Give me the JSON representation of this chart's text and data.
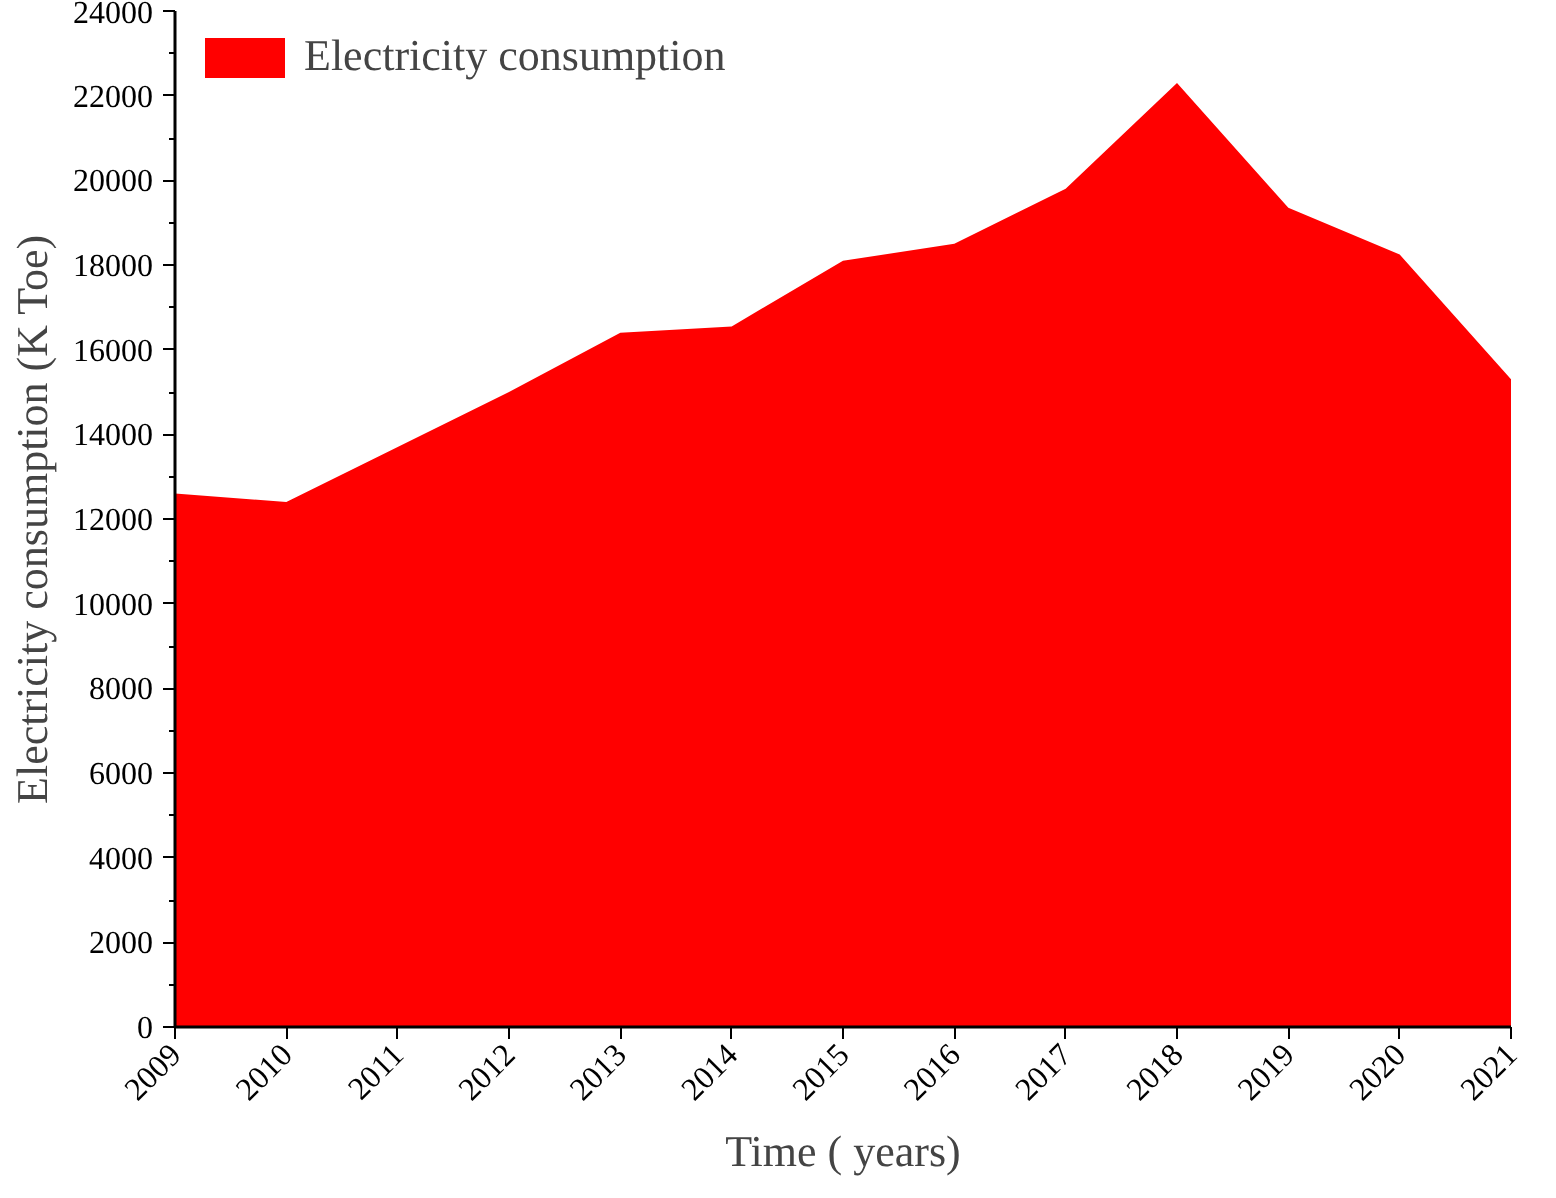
{
  "chart_data": {
    "type": "area",
    "xlabel": "Time ( years)",
    "ylabel": "Electricity consumption (K Toe)",
    "x": [
      2009,
      2010,
      2011,
      2012,
      2013,
      2014,
      2015,
      2016,
      2017,
      2018,
      2019,
      2020,
      2021
    ],
    "xlim": [
      2009,
      2021
    ],
    "xticks": [
      2009,
      2010,
      2011,
      2012,
      2013,
      2014,
      2015,
      2016,
      2017,
      2018,
      2019,
      2020,
      2021
    ],
    "ylim": [
      0,
      24000
    ],
    "yticks": [
      0,
      2000,
      4000,
      6000,
      8000,
      10000,
      12000,
      14000,
      16000,
      18000,
      20000,
      22000,
      24000
    ],
    "series": [
      {
        "name": "Electricity consumption",
        "color": "#ff0000",
        "values": [
          12600,
          12400,
          13700,
          15000,
          16400,
          16550,
          18100,
          18500,
          19800,
          22300,
          19350,
          18250,
          15300
        ]
      }
    ],
    "legend": "top left",
    "grid": false
  }
}
